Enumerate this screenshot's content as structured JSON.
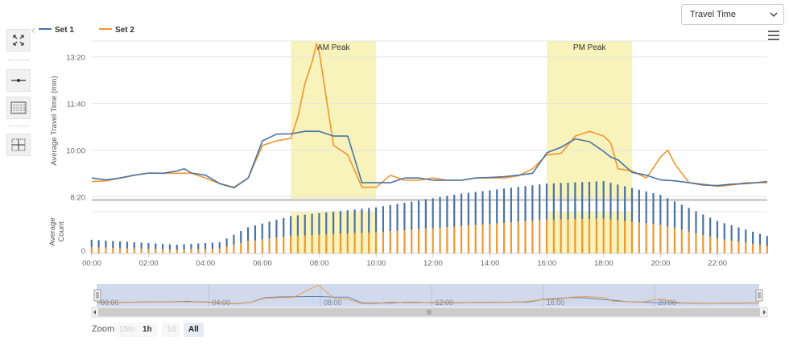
{
  "dropdown": {
    "selected": "Travel Time"
  },
  "zoom": {
    "label": "Zoom",
    "buttons": [
      "15m",
      "1h",
      "1d",
      "All"
    ],
    "active": "All",
    "disabled": [
      "15m",
      "1d"
    ]
  },
  "toolbar": {
    "icons": [
      "fullscreen-icon",
      "line-icon",
      "grid-icon",
      "crosshair-icon"
    ]
  },
  "chart_data": [
    {
      "type": "line",
      "ylabel": "Average Travel Time (min)",
      "ytick_labels": [
        "8:20",
        "10:00",
        "11:40",
        "13:20"
      ],
      "ytick_values_min": [
        8.333,
        10.0,
        11.667,
        13.333
      ],
      "ylim_min": [
        8.2,
        13.9
      ],
      "xlim_hours": [
        0,
        23.75
      ],
      "xtick_labels": [
        "00:00",
        "02:00",
        "04:00",
        "06:00",
        "08:00",
        "10:00",
        "12:00",
        "14:00",
        "16:00",
        "18:00",
        "20:00",
        "22:00"
      ],
      "bands": [
        {
          "label": "AM Peak",
          "from_hours": 7,
          "to_hours": 10,
          "color": "#f7f3bb"
        },
        {
          "label": "PM Peak",
          "from_hours": 16,
          "to_hours": 19,
          "color": "#f7f3bb"
        }
      ],
      "series": [
        {
          "name": "Set 1",
          "color": "#4a72a4",
          "x": [
            0,
            0.5,
            1,
            1.5,
            2,
            2.5,
            3,
            3.25,
            3.5,
            4,
            4.5,
            5,
            5.5,
            6,
            6.5,
            7,
            7.5,
            8,
            8.5,
            9,
            9.5,
            10,
            10.5,
            11,
            11.5,
            12,
            12.5,
            13,
            13.5,
            14,
            14.5,
            15,
            15.5,
            16,
            16.5,
            17,
            17.5,
            18,
            18.25,
            18.5,
            19,
            19.5,
            20,
            20.5,
            21,
            21.5,
            22,
            22.5,
            23,
            23.75
          ],
          "y": [
            9.0,
            8.93,
            9.0,
            9.1,
            9.18,
            9.17,
            9.25,
            9.33,
            9.18,
            9.1,
            8.8,
            8.65,
            9.0,
            10.33,
            10.57,
            10.58,
            10.67,
            10.67,
            10.5,
            10.5,
            8.83,
            8.83,
            8.83,
            9.0,
            9.0,
            8.92,
            8.92,
            8.92,
            9.0,
            9.02,
            9.05,
            9.1,
            9.17,
            9.9,
            10.1,
            10.4,
            10.3,
            9.95,
            9.75,
            9.65,
            9.2,
            9.1,
            8.93,
            8.9,
            8.83,
            8.75,
            8.73,
            8.78,
            8.8,
            8.87
          ]
        },
        {
          "name": "Set 2",
          "color": "#f2962d",
          "x": [
            0,
            0.5,
            1,
            1.5,
            2,
            2.5,
            3,
            3.5,
            4,
            4.5,
            5,
            5.5,
            6,
            6.5,
            7,
            7.25,
            7.5,
            7.75,
            7.9,
            8,
            8.25,
            8.5,
            8.75,
            9,
            9.5,
            10,
            10.5,
            11,
            11.5,
            12,
            12.5,
            13,
            13.5,
            14,
            14.5,
            15,
            15.5,
            16,
            16.5,
            17,
            17.5,
            18,
            18.25,
            18.5,
            19,
            19.5,
            20,
            20.25,
            20.5,
            21,
            21.5,
            22,
            22.5,
            23,
            23.75
          ],
          "y": [
            8.87,
            8.9,
            9.0,
            9.1,
            9.17,
            9.17,
            9.17,
            9.17,
            9.0,
            8.8,
            8.67,
            9.0,
            10.17,
            10.33,
            10.42,
            11.2,
            12.4,
            13.17,
            13.8,
            13.5,
            11.83,
            10.17,
            10.0,
            9.83,
            8.67,
            8.67,
            9.1,
            8.92,
            8.92,
            9.0,
            8.92,
            8.92,
            9.0,
            9.0,
            9.0,
            9.08,
            9.33,
            9.83,
            9.88,
            10.5,
            10.67,
            10.5,
            10.25,
            9.33,
            9.25,
            9.0,
            9.75,
            10.0,
            9.5,
            8.83,
            8.78,
            8.7,
            8.75,
            8.83,
            8.83
          ]
        }
      ]
    },
    {
      "type": "bar",
      "ylabel": "Average Count",
      "ytick_labels": [
        "0"
      ],
      "x_range_hours": [
        0,
        23.75
      ],
      "stacked": true,
      "series": [
        {
          "name": "Set 2",
          "color": "#f2962d",
          "x_hours": [
            0,
            3,
            4.5,
            5.5,
            7,
            10,
            13,
            16,
            18,
            20,
            22,
            23.75
          ],
          "values": [
            5,
            3,
            4,
            10,
            14,
            17,
            22,
            27,
            28,
            23,
            12,
            6
          ]
        },
        {
          "name": "Set 1",
          "color": "#4a72a4",
          "x_hours": [
            0,
            3,
            4.5,
            5.5,
            7,
            10,
            13,
            16,
            18,
            20,
            22,
            23.75
          ],
          "values": [
            6,
            4,
            5,
            11,
            16,
            20,
            26,
            29,
            30,
            24,
            14,
            8
          ]
        }
      ]
    },
    {
      "type": "line",
      "role": "navigator",
      "xtick_labels": [
        "00:00",
        "04:00",
        "08:00",
        "12:00",
        "16:00",
        "20:00"
      ],
      "selection_hours": [
        0,
        23.75
      ]
    }
  ]
}
